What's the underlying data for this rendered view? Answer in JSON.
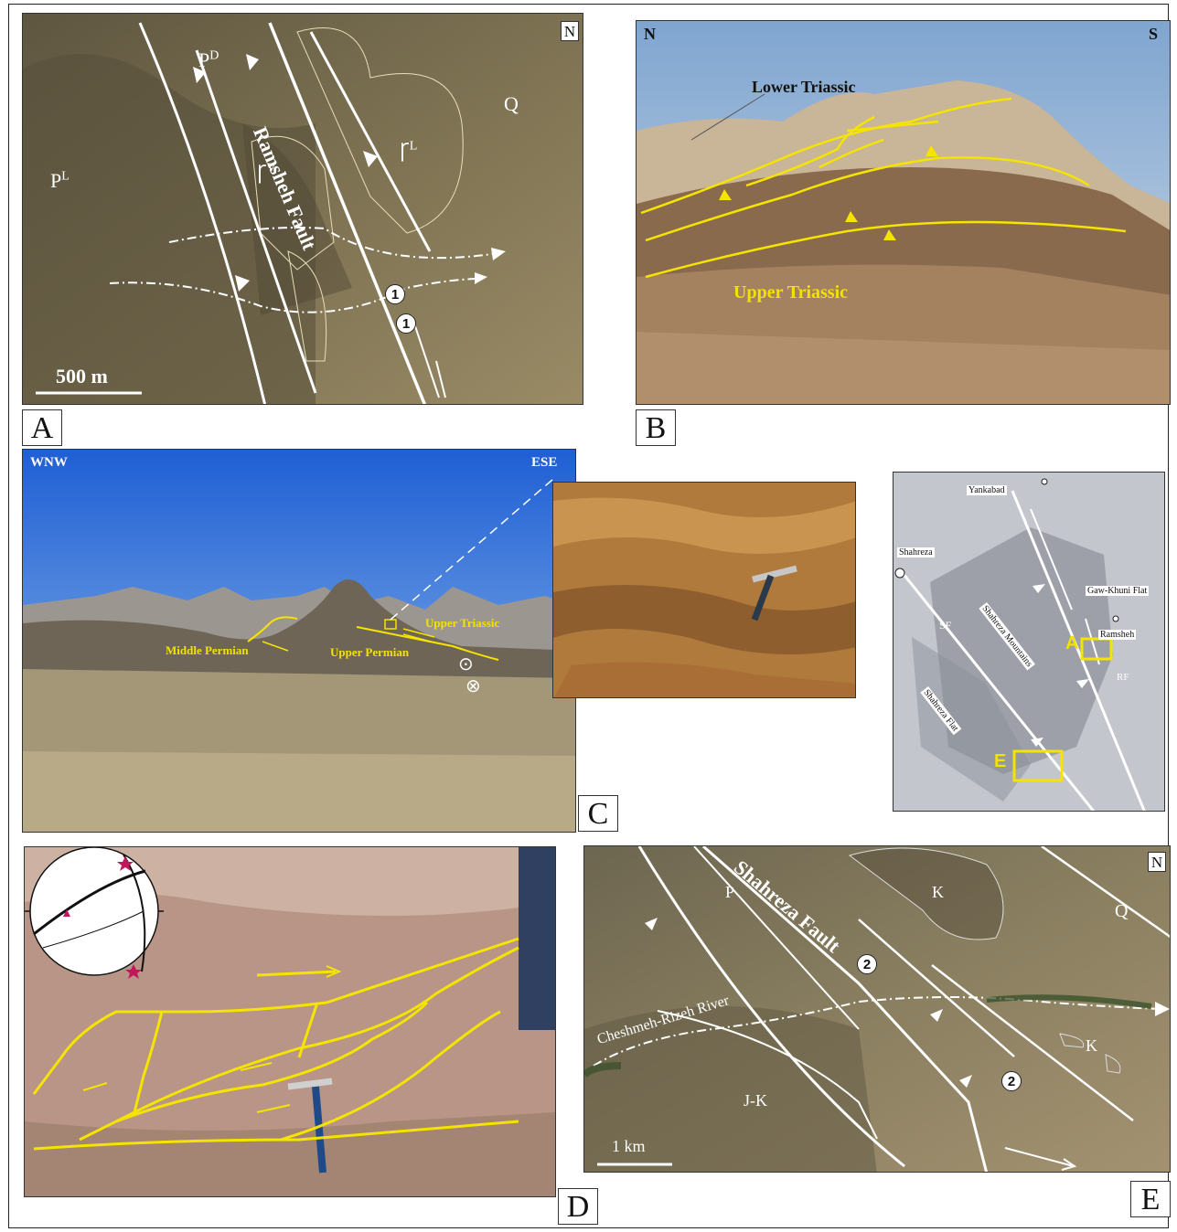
{
  "colors": {
    "fault_line": "#ffffff",
    "interpretation_yellow": "#f5e400",
    "border": "#333333"
  },
  "panel_a": {
    "letter": "A",
    "north": "N",
    "fault_name": "Ramsheh Fault",
    "units": {
      "p_l": "P",
      "p_l_sup": "L",
      "p_d": "P",
      "p_d_sup": "D",
      "tr_v": "Ꞅ",
      "tr_v_sup": "V",
      "tr_l": "Ꞅ",
      "tr_l_sup": "L",
      "q": "Q"
    },
    "markers": [
      "1",
      "1"
    ],
    "scale": "500 m"
  },
  "panel_b": {
    "letter": "B",
    "orient_left": "N",
    "orient_right": "S",
    "label_lower": "Lower Triassic",
    "label_upper": "Upper Triassic"
  },
  "panel_c": {
    "letter": "C",
    "orient_left": "WNW",
    "orient_right": "ESE",
    "label_middle_permian": "Middle Permian",
    "label_upper_permian": "Upper Permian",
    "label_upper_triassic": "Upper Triassic",
    "symbol_out": "⊙",
    "symbol_in": "⊗"
  },
  "map_inset": {
    "places": [
      "Yankabad",
      "Shahreza",
      "Gaw-Khuni Flat",
      "Ramsheh",
      "Shahreza Mountains",
      "Shahreza Flat"
    ],
    "fault_labels": [
      "SF",
      "RF"
    ],
    "boxes": [
      "A",
      "E"
    ]
  },
  "panel_d": {
    "letter": "D"
  },
  "panel_e": {
    "letter": "E",
    "north": "N",
    "fault_name": "Shahreza Fault",
    "river": "Cheshmeh-Rizeh River",
    "units": {
      "p": "P",
      "k1": "K",
      "q": "Q",
      "jk": "J-K",
      "k2": "K"
    },
    "markers": [
      "2",
      "2"
    ],
    "scale": "1 km"
  }
}
